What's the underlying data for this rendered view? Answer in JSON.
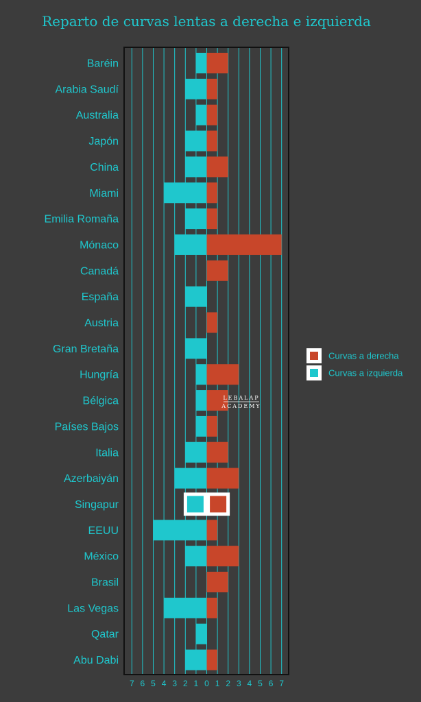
{
  "chart_data": {
    "type": "bar",
    "orientation": "horizontal",
    "title": "Reparto de curvas lentas a derecha e izquierda",
    "categories": [
      "Baréin",
      "Arabia Saudí",
      "Australia",
      "Japón",
      "China",
      "Miami",
      "Emilia Romaña",
      "Mónaco",
      "Canadá",
      "España",
      "Austria",
      "Gran Bretaña",
      "Hungría",
      "Bélgica",
      "Países Bajos",
      "Italia",
      "Azerbaiyán",
      "Singapur",
      "EEUU",
      "México",
      "Brasil",
      "Las Vegas",
      "Qatar",
      "Abu Dabi"
    ],
    "series": [
      {
        "name": "Curvas a derecha",
        "color": "#c8462a",
        "values": [
          2,
          1,
          1,
          1,
          2,
          1,
          1,
          7,
          2,
          0,
          1,
          0,
          3,
          2,
          1,
          2,
          3,
          2,
          1,
          3,
          2,
          1,
          0,
          1
        ]
      },
      {
        "name": "Curvas a izquierda",
        "color": "#1fc7cd",
        "values": [
          1,
          2,
          1,
          2,
          2,
          4,
          2,
          3,
          0,
          2,
          0,
          2,
          1,
          1,
          1,
          2,
          3,
          2,
          5,
          2,
          0,
          4,
          1,
          2
        ]
      }
    ],
    "xlim": [
      -7,
      7
    ],
    "xticks": [
      "7",
      "6",
      "5",
      "4",
      "3",
      "2",
      "1",
      "0",
      "1",
      "2",
      "3",
      "4",
      "5",
      "6",
      "7"
    ],
    "grid": true,
    "legend_position": "right",
    "highlighted_category": "Singapur"
  },
  "colors": {
    "background": "#3c3c3c",
    "plot_background": "#3c3c3c",
    "grid": "#1fc7cd",
    "text": "#1fc7cd",
    "frame": "#111111"
  },
  "watermark": {
    "line1": "LEBALAP",
    "line2": "ACADEMY"
  }
}
